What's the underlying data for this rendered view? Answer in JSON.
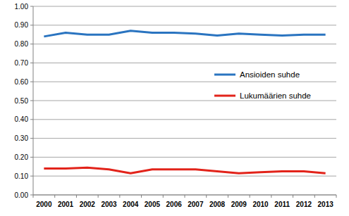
{
  "chart_data": {
    "type": "line",
    "categories": [
      "2000",
      "2001",
      "2002",
      "2003",
      "2004",
      "2005",
      "2006",
      "2007",
      "2008",
      "2009",
      "2010",
      "2011",
      "2012",
      "2013"
    ],
    "series": [
      {
        "name": "Ansioiden suhde",
        "color": "#2a74c0",
        "values": [
          0.84,
          0.86,
          0.85,
          0.85,
          0.87,
          0.86,
          0.86,
          0.855,
          0.845,
          0.855,
          0.85,
          0.845,
          0.85,
          0.85
        ]
      },
      {
        "name": "Lukumäärien suhde",
        "color": "#e2231a",
        "values": [
          0.14,
          0.14,
          0.145,
          0.135,
          0.115,
          0.135,
          0.135,
          0.135,
          0.125,
          0.115,
          0.12,
          0.125,
          0.125,
          0.115
        ]
      }
    ],
    "ylim": [
      0,
      1
    ],
    "yticks": [
      {
        "value": 0,
        "label": "0.00"
      },
      {
        "value": 0.1,
        "label": "0.10"
      },
      {
        "value": 0.2,
        "label": "0.20"
      },
      {
        "value": 0.3,
        "label": "0.30"
      },
      {
        "value": 0.4,
        "label": "0.40"
      },
      {
        "value": 0.5,
        "label": "0.50"
      },
      {
        "value": 0.6,
        "label": "0.60"
      },
      {
        "value": 0.7,
        "label": "0.70"
      },
      {
        "value": 0.8,
        "label": "0.80"
      },
      {
        "value": 0.9,
        "label": "0.90"
      },
      {
        "value": 1,
        "label": "1.00"
      }
    ],
    "grid": true,
    "legend": "right"
  }
}
